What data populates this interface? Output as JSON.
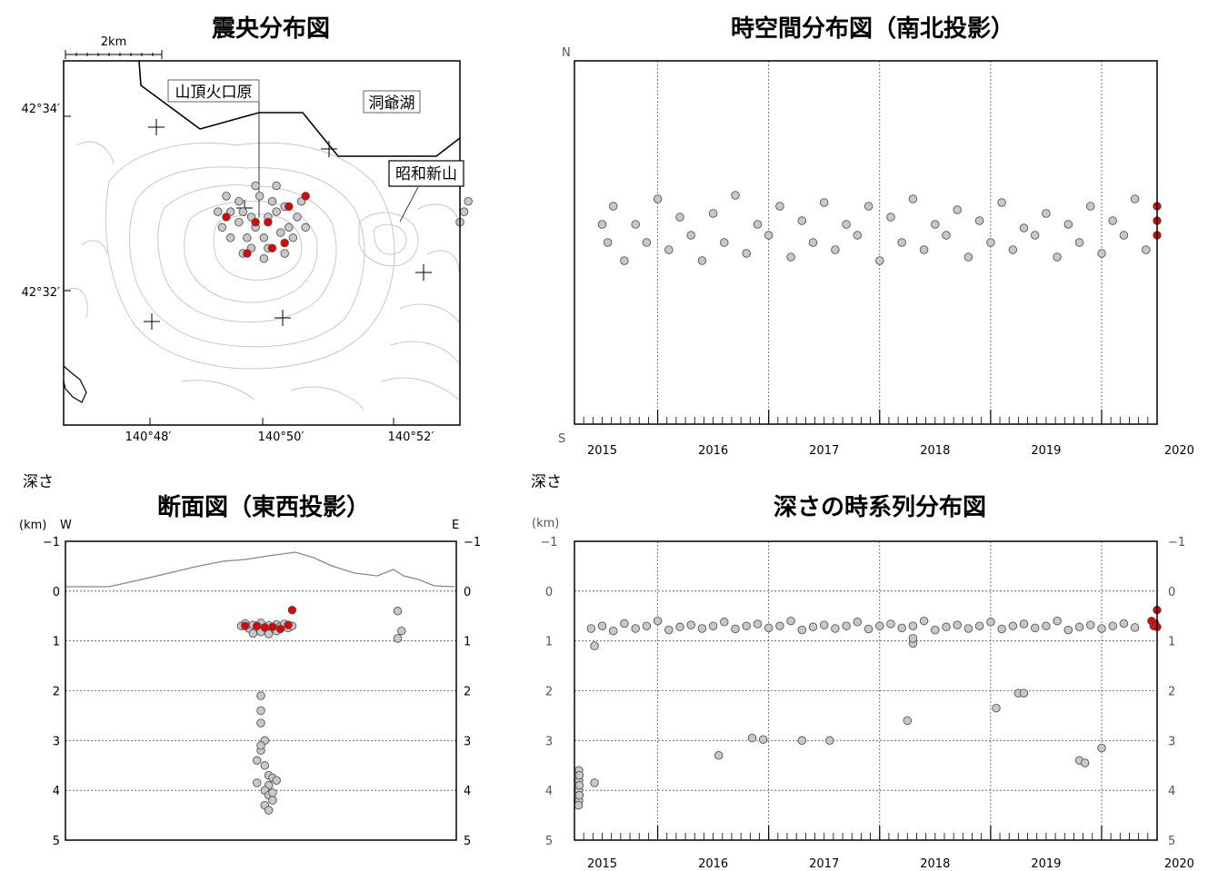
{
  "colors": {
    "event": "#c8c8c8",
    "recent": "#e00000",
    "frame": "#000000",
    "grid": "#555555"
  },
  "chart_data": [
    {
      "id": "epicenter",
      "type": "scatter",
      "title": "震央分布図",
      "scale_label": "2km",
      "x_ticks": [
        "140°48′",
        "140°50′",
        "140°52′"
      ],
      "y_ticks": [
        "42°34′",
        "42°32′"
      ],
      "place_labels": [
        "山頂火口原",
        "洞爺湖",
        "昭和新山"
      ],
      "points": [
        {
          "lon": 140.823,
          "lat": 42.546
        },
        {
          "lon": 140.829,
          "lat": 42.545
        },
        {
          "lon": 140.831,
          "lat": 42.546
        },
        {
          "lon": 140.825,
          "lat": 42.545
        },
        {
          "lon": 140.834,
          "lat": 42.543
        },
        {
          "lon": 140.828,
          "lat": 42.541
        },
        {
          "lon": 140.826,
          "lat": 42.543
        },
        {
          "lon": 140.832,
          "lat": 42.542
        },
        {
          "lon": 140.822,
          "lat": 42.544
        },
        {
          "lon": 140.83,
          "lat": 42.548
        },
        {
          "lon": 140.827,
          "lat": 42.549
        },
        {
          "lon": 140.824,
          "lat": 42.541
        },
        {
          "lon": 140.833,
          "lat": 42.547
        },
        {
          "lon": 140.82,
          "lat": 42.546
        },
        {
          "lon": 140.836,
          "lat": 42.545
        },
        {
          "lon": 140.829,
          "lat": 42.539
        },
        {
          "lon": 140.825,
          "lat": 42.539
        },
        {
          "lon": 140.822,
          "lat": 42.548
        },
        {
          "lon": 140.818,
          "lat": 42.543
        },
        {
          "lon": 140.835,
          "lat": 42.541
        },
        {
          "lon": 140.82,
          "lat": 42.541
        },
        {
          "lon": 140.831,
          "lat": 42.551
        },
        {
          "lon": 140.826,
          "lat": 42.551
        },
        {
          "lon": 140.837,
          "lat": 42.548
        },
        {
          "lon": 140.817,
          "lat": 42.546
        },
        {
          "lon": 140.828,
          "lat": 42.537
        },
        {
          "lon": 140.823,
          "lat": 42.538
        },
        {
          "lon": 140.838,
          "lat": 42.543
        },
        {
          "lon": 140.819,
          "lat": 42.549
        },
        {
          "lon": 140.833,
          "lat": 42.538
        },
        {
          "lon": 140.876,
          "lat": 42.546
        },
        {
          "lon": 140.877,
          "lat": 42.548
        },
        {
          "lon": 140.875,
          "lat": 42.544
        }
      ],
      "recent_points": [
        {
          "lon": 140.819,
          "lat": 42.545
        },
        {
          "lon": 140.826,
          "lat": 42.544
        },
        {
          "lon": 140.829,
          "lat": 42.544
        },
        {
          "lon": 140.834,
          "lat": 42.547
        },
        {
          "lon": 140.838,
          "lat": 42.549
        },
        {
          "lon": 140.83,
          "lat": 42.539
        },
        {
          "lon": 140.833,
          "lat": 42.54
        },
        {
          "lon": 140.824,
          "lat": 42.538
        }
      ]
    },
    {
      "id": "spacetime",
      "type": "scatter",
      "title": "時空間分布図（南北投影）",
      "x_ticks": [
        "2015",
        "2016",
        "2017",
        "2018",
        "2019",
        "2020"
      ],
      "y_end_labels": [
        "N",
        "S"
      ],
      "series": [
        {
          "name": "events",
          "points": [
            [
              2015.0,
              0.55
            ],
            [
              2015.05,
              0.5
            ],
            [
              2015.1,
              0.6
            ],
            [
              2015.2,
              0.45
            ],
            [
              2015.3,
              0.55
            ],
            [
              2015.4,
              0.5
            ],
            [
              2015.5,
              0.62
            ],
            [
              2015.6,
              0.48
            ],
            [
              2015.7,
              0.57
            ],
            [
              2015.8,
              0.52
            ],
            [
              2015.9,
              0.45
            ],
            [
              2016.0,
              0.58
            ],
            [
              2016.1,
              0.5
            ],
            [
              2016.2,
              0.63
            ],
            [
              2016.3,
              0.47
            ],
            [
              2016.4,
              0.55
            ],
            [
              2016.5,
              0.52
            ],
            [
              2016.6,
              0.6
            ],
            [
              2016.7,
              0.46
            ],
            [
              2016.8,
              0.56
            ],
            [
              2016.9,
              0.5
            ],
            [
              2017.0,
              0.61
            ],
            [
              2017.1,
              0.48
            ],
            [
              2017.2,
              0.55
            ],
            [
              2017.3,
              0.52
            ],
            [
              2017.4,
              0.6
            ],
            [
              2017.5,
              0.45
            ],
            [
              2017.6,
              0.57
            ],
            [
              2017.7,
              0.5
            ],
            [
              2017.8,
              0.62
            ],
            [
              2017.9,
              0.48
            ],
            [
              2018.0,
              0.55
            ],
            [
              2018.1,
              0.52
            ],
            [
              2018.2,
              0.59
            ],
            [
              2018.3,
              0.46
            ],
            [
              2018.4,
              0.56
            ],
            [
              2018.5,
              0.5
            ],
            [
              2018.6,
              0.61
            ],
            [
              2018.7,
              0.48
            ],
            [
              2018.8,
              0.54
            ],
            [
              2018.9,
              0.52
            ],
            [
              2019.0,
              0.58
            ],
            [
              2019.1,
              0.46
            ],
            [
              2019.2,
              0.55
            ],
            [
              2019.3,
              0.5
            ],
            [
              2019.4,
              0.6
            ],
            [
              2019.5,
              0.47
            ],
            [
              2019.6,
              0.56
            ],
            [
              2019.7,
              0.52
            ],
            [
              2019.8,
              0.62
            ],
            [
              2019.9,
              0.48
            ]
          ]
        },
        {
          "name": "recent",
          "points": [
            [
              2020.0,
              0.56
            ],
            [
              2020.0,
              0.52
            ],
            [
              2020.0,
              0.6
            ]
          ]
        }
      ]
    },
    {
      "id": "cross-section",
      "type": "scatter",
      "title": "断面図（東西投影）",
      "y_caption": "深さ",
      "y_unit": "(km)",
      "x_end_labels": [
        "W",
        "E"
      ],
      "y_ticks": [
        "−1",
        "0",
        "1",
        "2",
        "3",
        "4",
        "5"
      ],
      "ylim": [
        -1,
        5
      ],
      "points": [
        [
          0.45,
          0.7
        ],
        [
          0.46,
          0.65
        ],
        [
          0.47,
          0.75
        ],
        [
          0.48,
          0.68
        ],
        [
          0.49,
          0.72
        ],
        [
          0.5,
          0.64
        ],
        [
          0.51,
          0.73
        ],
        [
          0.52,
          0.69
        ],
        [
          0.53,
          0.76
        ],
        [
          0.54,
          0.67
        ],
        [
          0.55,
          0.71
        ],
        [
          0.56,
          0.66
        ],
        [
          0.57,
          0.74
        ],
        [
          0.58,
          0.7
        ],
        [
          0.48,
          0.85
        ],
        [
          0.5,
          0.82
        ],
        [
          0.52,
          0.86
        ],
        [
          0.54,
          0.8
        ],
        [
          0.5,
          2.1
        ],
        [
          0.5,
          2.4
        ],
        [
          0.5,
          2.65
        ],
        [
          0.51,
          3.0
        ],
        [
          0.5,
          3.2
        ],
        [
          0.49,
          3.4
        ],
        [
          0.51,
          3.5
        ],
        [
          0.52,
          3.7
        ],
        [
          0.53,
          3.75
        ],
        [
          0.52,
          3.9
        ],
        [
          0.51,
          4.0
        ],
        [
          0.52,
          4.1
        ],
        [
          0.53,
          4.2
        ],
        [
          0.51,
          4.3
        ],
        [
          0.52,
          4.4
        ],
        [
          0.5,
          3.1
        ],
        [
          0.54,
          3.8
        ],
        [
          0.49,
          3.85
        ],
        [
          0.53,
          4.05
        ],
        [
          0.85,
          0.4
        ],
        [
          0.86,
          0.8
        ],
        [
          0.85,
          0.95
        ]
      ],
      "recent_points": [
        [
          0.49,
          0.7
        ],
        [
          0.51,
          0.73
        ],
        [
          0.53,
          0.72
        ],
        [
          0.55,
          0.76
        ],
        [
          0.57,
          0.68
        ],
        [
          0.58,
          0.38
        ],
        [
          0.46,
          0.7
        ]
      ]
    },
    {
      "id": "depth-time",
      "type": "scatter",
      "title": "深さの時系列分布図",
      "y_caption": "深さ",
      "y_unit": "(km)",
      "x_ticks": [
        "2015",
        "2016",
        "2017",
        "2018",
        "2019",
        "2020"
      ],
      "y_ticks": [
        "−1",
        "0",
        "1",
        "2",
        "3",
        "4",
        "5"
      ],
      "ylim": [
        -1,
        5
      ],
      "series": [
        {
          "name": "events",
          "points": [
            [
              2014.9,
              0.75
            ],
            [
              2015.0,
              0.7
            ],
            [
              2015.1,
              0.8
            ],
            [
              2015.2,
              0.65
            ],
            [
              2015.3,
              0.75
            ],
            [
              2015.4,
              0.7
            ],
            [
              2015.5,
              0.6
            ],
            [
              2015.6,
              0.78
            ],
            [
              2015.7,
              0.72
            ],
            [
              2015.8,
              0.68
            ],
            [
              2015.9,
              0.75
            ],
            [
              2016.0,
              0.7
            ],
            [
              2016.1,
              0.62
            ],
            [
              2016.2,
              0.76
            ],
            [
              2016.3,
              0.7
            ],
            [
              2016.4,
              0.66
            ],
            [
              2016.5,
              0.74
            ],
            [
              2016.6,
              0.7
            ],
            [
              2016.7,
              0.6
            ],
            [
              2016.8,
              0.78
            ],
            [
              2016.9,
              0.72
            ],
            [
              2017.0,
              0.68
            ],
            [
              2017.1,
              0.75
            ],
            [
              2017.2,
              0.7
            ],
            [
              2017.3,
              0.62
            ],
            [
              2017.4,
              0.76
            ],
            [
              2017.5,
              0.7
            ],
            [
              2017.6,
              0.66
            ],
            [
              2017.7,
              0.74
            ],
            [
              2017.8,
              0.7
            ],
            [
              2017.9,
              0.6
            ],
            [
              2018.0,
              0.78
            ],
            [
              2018.1,
              0.72
            ],
            [
              2018.2,
              0.68
            ],
            [
              2018.3,
              0.75
            ],
            [
              2018.4,
              0.7
            ],
            [
              2018.5,
              0.62
            ],
            [
              2018.6,
              0.76
            ],
            [
              2018.7,
              0.7
            ],
            [
              2018.8,
              0.66
            ],
            [
              2018.9,
              0.74
            ],
            [
              2019.0,
              0.7
            ],
            [
              2019.1,
              0.6
            ],
            [
              2019.2,
              0.78
            ],
            [
              2019.3,
              0.72
            ],
            [
              2019.4,
              0.68
            ],
            [
              2019.5,
              0.75
            ],
            [
              2019.6,
              0.7
            ],
            [
              2019.7,
              0.65
            ],
            [
              2019.8,
              0.73
            ],
            [
              2014.05,
              3.6
            ],
            [
              2014.05,
              3.8
            ],
            [
              2014.05,
              4.0
            ],
            [
              2014.05,
              4.2
            ],
            [
              2014.06,
              3.7
            ],
            [
              2014.06,
              4.1
            ],
            [
              2014.06,
              3.9
            ],
            [
              2014.04,
              4.3
            ],
            [
              2014.4,
              1.1
            ],
            [
              2014.4,
              3.85
            ],
            [
              2016.05,
              3.3
            ],
            [
              2016.35,
              2.95
            ],
            [
              2016.45,
              2.98
            ],
            [
              2016.8,
              3.0
            ],
            [
              2017.05,
              3.0
            ],
            [
              2017.75,
              2.6
            ],
            [
              2018.55,
              2.35
            ],
            [
              2018.75,
              2.05
            ],
            [
              2018.8,
              2.05
            ],
            [
              2019.3,
              3.4
            ],
            [
              2019.35,
              3.45
            ],
            [
              2019.5,
              3.15
            ],
            [
              2017.8,
              1.05
            ],
            [
              2017.8,
              0.95
            ]
          ]
        },
        {
          "name": "recent",
          "points": [
            [
              2019.95,
              0.6
            ],
            [
              2019.97,
              0.7
            ],
            [
              2019.98,
              0.65
            ],
            [
              2020.0,
              0.38
            ],
            [
              2020.0,
              0.72
            ]
          ]
        }
      ]
    }
  ]
}
